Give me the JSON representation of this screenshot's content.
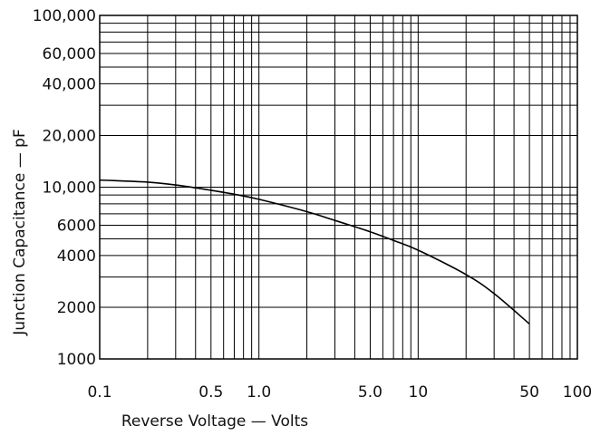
{
  "chart_data": {
    "type": "line",
    "title": "",
    "xlabel": "Reverse Voltage — Volts",
    "ylabel": "Junction Capacitance — pF",
    "xscale": "log",
    "yscale": "log",
    "xlim": [
      0.1,
      100
    ],
    "ylim": [
      1000,
      100000
    ],
    "grid": true,
    "legend": "none",
    "xticks": [
      {
        "value": 0.1,
        "label": "0.1"
      },
      {
        "value": 0.5,
        "label": "0.5"
      },
      {
        "value": 1,
        "label": "1.0"
      },
      {
        "value": 5,
        "label": "5.0"
      },
      {
        "value": 10,
        "label": "10"
      },
      {
        "value": 50,
        "label": "50"
      },
      {
        "value": 100,
        "label": "100"
      }
    ],
    "yticks": [
      {
        "value": 100000,
        "label": "100,000"
      },
      {
        "value": 60000,
        "label": "60,000"
      },
      {
        "value": 40000,
        "label": "40,000"
      },
      {
        "value": 20000,
        "label": "20,000"
      },
      {
        "value": 10000,
        "label": "10,000"
      },
      {
        "value": 6000,
        "label": "6000"
      },
      {
        "value": 4000,
        "label": "4000"
      },
      {
        "value": 2000,
        "label": "2000"
      },
      {
        "value": 1000,
        "label": "1000"
      }
    ],
    "x_gridlines": [
      0.1,
      0.2,
      0.3,
      0.4,
      0.5,
      0.6,
      0.7,
      0.8,
      0.9,
      1,
      2,
      3,
      4,
      5,
      6,
      7,
      8,
      9,
      10,
      20,
      30,
      40,
      50,
      60,
      70,
      80,
      90,
      100
    ],
    "y_gridlines": [
      1000,
      2000,
      3000,
      4000,
      5000,
      6000,
      7000,
      8000,
      9000,
      10000,
      20000,
      30000,
      40000,
      50000,
      60000,
      70000,
      80000,
      90000,
      100000
    ],
    "series": [
      {
        "color": "#000000",
        "x": [
          0.1,
          0.2,
          0.3,
          0.5,
          0.7,
          1,
          2,
          3,
          5,
          7,
          10,
          20,
          30,
          50
        ],
        "y": [
          11000,
          10700,
          10300,
          9600,
          9100,
          8500,
          7200,
          6400,
          5500,
          4900,
          4300,
          3100,
          2400,
          1600
        ]
      }
    ]
  }
}
